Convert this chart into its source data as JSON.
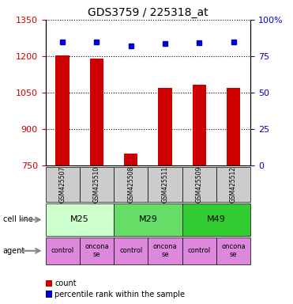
{
  "title": "GDS3759 / 225318_at",
  "samples": [
    "GSM425507",
    "GSM425510",
    "GSM425508",
    "GSM425511",
    "GSM425509",
    "GSM425512"
  ],
  "bar_values": [
    1202,
    1190,
    800,
    1070,
    1082,
    1070
  ],
  "percentile_values": [
    85,
    85,
    82,
    83.5,
    84,
    85
  ],
  "bar_color": "#cc0000",
  "dot_color": "#0000cc",
  "ylim_left": [
    750,
    1350
  ],
  "ylim_right": [
    0,
    100
  ],
  "yticks_left": [
    750,
    900,
    1050,
    1200,
    1350
  ],
  "yticks_right": [
    0,
    25,
    50,
    75,
    100
  ],
  "ytick_labels_right": [
    "0",
    "25",
    "50",
    "75",
    "100%"
  ],
  "cell_lines": [
    {
      "label": "M25",
      "span": [
        0,
        2
      ],
      "color": "#ccffcc"
    },
    {
      "label": "M29",
      "span": [
        2,
        4
      ],
      "color": "#66dd66"
    },
    {
      "label": "M49",
      "span": [
        4,
        6
      ],
      "color": "#33cc33"
    }
  ],
  "agents": [
    {
      "label": "control",
      "span": [
        0,
        1
      ]
    },
    {
      "label": "oncona\nse",
      "span": [
        1,
        2
      ]
    },
    {
      "label": "control",
      "span": [
        2,
        3
      ]
    },
    {
      "label": "oncona\nse",
      "span": [
        3,
        4
      ]
    },
    {
      "label": "control",
      "span": [
        4,
        5
      ]
    },
    {
      "label": "oncona\nse",
      "span": [
        5,
        6
      ]
    }
  ],
  "agent_color": "#dd88dd",
  "sample_box_color": "#cccccc",
  "left_tick_color": "#cc0000",
  "right_tick_color": "#0000cc",
  "legend_count_color": "#cc0000",
  "legend_dot_color": "#0000cc"
}
